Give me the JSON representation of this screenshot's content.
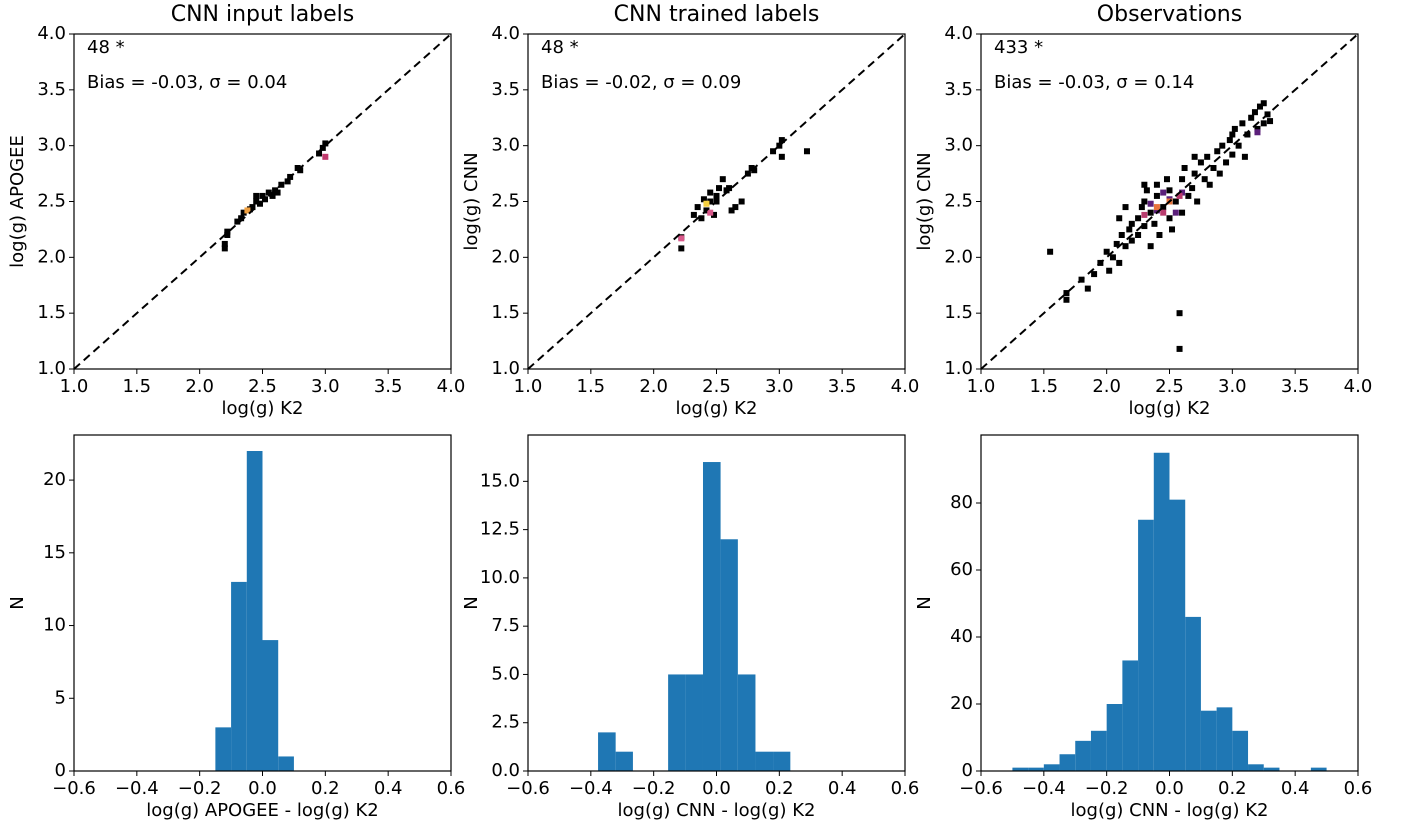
{
  "chart_data": [
    {
      "type": "scatter",
      "title": "CNN input labels",
      "xlabel": "log(g) K2",
      "ylabel": "log(g) APOGEE",
      "annotations": [
        "48 *",
        "Bias = -0.03, σ = 0.04"
      ],
      "identity_line": true,
      "xlim": [
        1,
        4
      ],
      "ylim": [
        1,
        4
      ],
      "xticks": [
        {
          "value": 1,
          "label": "1.0"
        },
        1.5,
        {
          "value": 2,
          "label": "2.0"
        },
        2.5,
        {
          "value": 3,
          "label": "3.0"
        },
        3.5,
        {
          "value": 4,
          "label": "4.0"
        }
      ],
      "yticks": [
        {
          "value": 1,
          "label": "1.0"
        },
        1.5,
        {
          "value": 2,
          "label": "2.0"
        },
        2.5,
        {
          "value": 3,
          "label": "3.0"
        },
        3.5,
        {
          "value": 4,
          "label": "4.0"
        }
      ],
      "series": [
        {
          "color": "#000000",
          "x": [
            2.2,
            2.2,
            2.22,
            2.22,
            2.3,
            2.33,
            2.35,
            2.4,
            2.42,
            2.45,
            2.45,
            2.48,
            2.5,
            2.52,
            2.55,
            2.58,
            2.6,
            2.62,
            2.65,
            2.7,
            2.72,
            2.78,
            2.8,
            2.95,
            2.98,
            3.0
          ],
          "y": [
            2.08,
            2.12,
            2.2,
            2.23,
            2.32,
            2.35,
            2.4,
            2.43,
            2.45,
            2.5,
            2.55,
            2.48,
            2.55,
            2.52,
            2.58,
            2.55,
            2.6,
            2.58,
            2.65,
            2.68,
            2.72,
            2.8,
            2.78,
            2.93,
            2.98,
            3.02
          ]
        },
        {
          "color": "#c0396d",
          "x": [
            3.0
          ],
          "y": [
            2.9
          ]
        },
        {
          "color": "#f0a040",
          "x": [
            2.38
          ],
          "y": [
            2.42
          ]
        }
      ]
    },
    {
      "type": "scatter",
      "title": "CNN trained labels",
      "xlabel": "log(g) K2",
      "ylabel": "log(g) CNN",
      "annotations": [
        "48 *",
        "Bias = -0.02, σ = 0.09"
      ],
      "identity_line": true,
      "xlim": [
        1,
        4
      ],
      "ylim": [
        1,
        4
      ],
      "xticks": [
        {
          "value": 1,
          "label": "1.0"
        },
        1.5,
        {
          "value": 2,
          "label": "2.0"
        },
        2.5,
        {
          "value": 3,
          "label": "3.0"
        },
        3.5,
        {
          "value": 4,
          "label": "4.0"
        }
      ],
      "yticks": [
        {
          "value": 1,
          "label": "1.0"
        },
        1.5,
        {
          "value": 2,
          "label": "2.0"
        },
        2.5,
        {
          "value": 3,
          "label": "3.0"
        },
        3.5,
        {
          "value": 4,
          "label": "4.0"
        }
      ],
      "series": [
        {
          "color": "#000000",
          "x": [
            2.22,
            2.22,
            2.32,
            2.35,
            2.38,
            2.4,
            2.42,
            2.45,
            2.5,
            2.5,
            2.52,
            2.55,
            2.58,
            2.6,
            2.62,
            2.65,
            2.48,
            2.75,
            2.78,
            2.8,
            2.95,
            3.0,
            3.02,
            3.02,
            3.22,
            2.45,
            2.7
          ],
          "y": [
            2.08,
            2.18,
            2.38,
            2.45,
            2.35,
            2.52,
            2.42,
            2.5,
            2.55,
            2.5,
            2.62,
            2.7,
            2.6,
            2.62,
            2.42,
            2.45,
            2.38,
            2.75,
            2.8,
            2.78,
            2.95,
            3.0,
            2.9,
            3.05,
            2.95,
            2.58,
            2.5
          ]
        },
        {
          "color": "#d9588a",
          "x": [
            2.22,
            2.45
          ],
          "y": [
            2.17,
            2.4
          ]
        },
        {
          "color": "#f5d040",
          "x": [
            2.42
          ],
          "y": [
            2.48
          ]
        }
      ]
    },
    {
      "type": "scatter",
      "title": "Observations",
      "xlabel": "log(g) K2",
      "ylabel": "log(g) CNN",
      "annotations": [
        "433 *",
        "Bias = -0.03, σ = 0.14"
      ],
      "identity_line": true,
      "xlim": [
        1,
        4
      ],
      "ylim": [
        1,
        4
      ],
      "xticks": [
        {
          "value": 1,
          "label": "1.0"
        },
        1.5,
        {
          "value": 2,
          "label": "2.0"
        },
        2.5,
        {
          "value": 3,
          "label": "3.0"
        },
        3.5,
        {
          "value": 4,
          "label": "4.0"
        }
      ],
      "yticks": [
        {
          "value": 1,
          "label": "1.0"
        },
        1.5,
        {
          "value": 2,
          "label": "2.0"
        },
        2.5,
        {
          "value": 3,
          "label": "3.0"
        },
        3.5,
        {
          "value": 4,
          "label": "4.0"
        }
      ],
      "series": [
        {
          "color": "#000000",
          "x": [
            1.55,
            1.68,
            1.68,
            1.85,
            1.9,
            1.95,
            2.0,
            2.02,
            2.05,
            2.08,
            2.1,
            2.12,
            2.15,
            2.18,
            2.2,
            2.2,
            2.25,
            2.25,
            2.28,
            2.3,
            2.3,
            2.32,
            2.35,
            2.38,
            2.4,
            2.4,
            2.42,
            2.45,
            2.48,
            2.5,
            2.5,
            2.52,
            2.55,
            2.58,
            2.58,
            2.6,
            2.6,
            2.62,
            2.65,
            2.68,
            2.7,
            2.72,
            2.75,
            2.78,
            2.8,
            2.82,
            2.85,
            2.88,
            2.9,
            2.92,
            2.95,
            2.98,
            3.0,
            3.02,
            3.05,
            3.08,
            3.1,
            3.12,
            3.15,
            3.18,
            3.2,
            3.22,
            3.25,
            3.28,
            3.3,
            3.0,
            2.7,
            2.1,
            2.35,
            1.8,
            3.25,
            2.15,
            2.3
          ],
          "y": [
            2.05,
            1.68,
            1.62,
            1.72,
            1.85,
            1.95,
            2.05,
            1.88,
            2.0,
            2.12,
            1.95,
            2.2,
            2.1,
            2.25,
            2.3,
            2.15,
            2.35,
            2.2,
            2.45,
            2.5,
            2.28,
            2.6,
            2.4,
            2.3,
            2.55,
            2.65,
            2.2,
            2.45,
            2.7,
            2.35,
            2.6,
            2.25,
            2.5,
            1.5,
            1.18,
            2.7,
            2.4,
            2.8,
            2.55,
            2.62,
            2.75,
            2.5,
            2.85,
            2.7,
            2.9,
            2.65,
            2.8,
            2.95,
            2.75,
            3.0,
            2.85,
            3.05,
            2.92,
            3.15,
            3.0,
            3.2,
            2.9,
            3.1,
            3.25,
            3.3,
            3.15,
            3.35,
            3.38,
            3.28,
            3.22,
            3.1,
            2.9,
            2.35,
            2.1,
            1.8,
            3.2,
            2.45,
            2.65
          ]
        },
        {
          "color": "#5b1f7a",
          "x": [
            2.35,
            2.4,
            2.5,
            2.6,
            2.45,
            3.2,
            2.55
          ],
          "y": [
            2.48,
            2.42,
            2.52,
            2.58,
            2.58,
            3.12,
            2.4
          ]
        },
        {
          "color": "#e8743b",
          "x": [
            2.4,
            2.5
          ],
          "y": [
            2.45,
            2.5
          ]
        },
        {
          "color": "#b83c6e",
          "x": [
            2.45,
            2.58,
            2.3
          ],
          "y": [
            2.4,
            2.55,
            2.38
          ]
        }
      ]
    },
    {
      "type": "histogram",
      "xlabel": "log(g) APOGEE - log(g) K2",
      "ylabel": "N",
      "color": "#1f77b4",
      "bins": [
        -0.15,
        -0.1,
        -0.05,
        0,
        0.05,
        0.1
      ],
      "values": [
        3,
        13,
        22,
        9,
        1
      ],
      "xlim": [
        -0.6,
        0.6
      ],
      "ylim": [
        0,
        23.1
      ],
      "xticks": [
        {
          "value": -0.6,
          "label": "−0.6"
        },
        {
          "value": -0.4,
          "label": "−0.4"
        },
        {
          "value": -0.2,
          "label": "−0.2"
        },
        {
          "value": 0,
          "label": "0.0"
        },
        0.2,
        0.4,
        0.6
      ],
      "yticks": [
        0,
        5,
        10,
        15,
        20
      ]
    },
    {
      "type": "histogram",
      "xlabel": "log(g) CNN - log(g) K2",
      "ylabel": "N",
      "color": "#1f77b4",
      "bins": [
        -0.377,
        -0.321,
        -0.266,
        -0.21,
        -0.154,
        -0.099,
        -0.043,
        0.013,
        0.068,
        0.124,
        0.18,
        0.235
      ],
      "values": [
        2,
        1,
        0,
        0,
        5,
        5,
        16,
        12,
        5,
        1,
        1
      ],
      "xlim": [
        -0.6,
        0.6
      ],
      "ylim": [
        0,
        17.4
      ],
      "xticks": [
        {
          "value": -0.6,
          "label": "−0.6"
        },
        {
          "value": -0.4,
          "label": "−0.4"
        },
        {
          "value": -0.2,
          "label": "−0.2"
        },
        {
          "value": 0,
          "label": "0.0"
        },
        0.2,
        0.4,
        0.6
      ],
      "yticks": [
        {
          "value": 0,
          "label": "0.0"
        },
        2.5,
        {
          "value": 5,
          "label": "5.0"
        },
        7.5,
        {
          "value": 10,
          "label": "10.0"
        },
        12.5,
        {
          "value": 15,
          "label": "15.0"
        }
      ]
    },
    {
      "type": "histogram",
      "xlabel": "log(g) CNN - log(g) K2",
      "ylabel": "N",
      "color": "#1f77b4",
      "bins": [
        -0.5,
        -0.45,
        -0.4,
        -0.35,
        -0.3,
        -0.25,
        -0.2,
        -0.15,
        -0.1,
        -0.05,
        0,
        0.05,
        0.1,
        0.15,
        0.2,
        0.25,
        0.3,
        0.35,
        0.4,
        0.45,
        0.5
      ],
      "values": [
        1,
        1,
        2,
        5,
        9,
        12,
        20,
        33,
        75,
        95,
        81,
        46,
        18,
        19,
        12,
        2,
        1,
        0,
        0,
        1
      ],
      "xlim": [
        -0.6,
        0.6
      ],
      "ylim": [
        0,
        100.3
      ],
      "xticks": [
        {
          "value": -0.6,
          "label": "−0.6"
        },
        {
          "value": -0.4,
          "label": "−0.4"
        },
        {
          "value": -0.2,
          "label": "−0.2"
        },
        {
          "value": 0,
          "label": "0.0"
        },
        0.2,
        0.4,
        0.6
      ],
      "yticks": [
        0,
        20,
        40,
        60,
        80
      ]
    }
  ]
}
